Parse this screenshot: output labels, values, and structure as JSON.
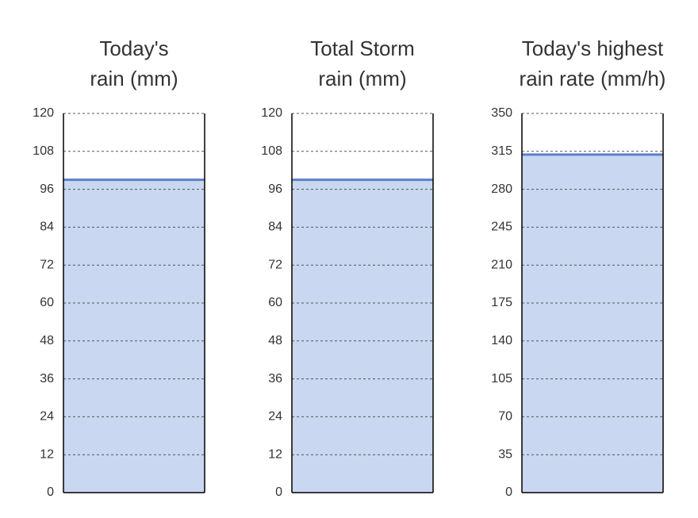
{
  "chart_data": [
    {
      "type": "bar",
      "title": [
        "Today's",
        "rain (mm)"
      ],
      "values": [
        99
      ],
      "color": "#c9d7f0",
      "line_color": "#5b7fc9",
      "ylim": [
        0,
        120
      ],
      "yticks": [
        0,
        12,
        24,
        36,
        48,
        60,
        72,
        84,
        96,
        108,
        120
      ],
      "grid": true
    },
    {
      "type": "bar",
      "title": [
        "Total Storm",
        "rain (mm)"
      ],
      "values": [
        99
      ],
      "color": "#c9d7f0",
      "line_color": "#5b7fc9",
      "ylim": [
        0,
        120
      ],
      "yticks": [
        0,
        12,
        24,
        36,
        48,
        60,
        72,
        84,
        96,
        108,
        120
      ],
      "grid": true
    },
    {
      "type": "bar",
      "title": [
        "Today's highest",
        "rain rate (mm/h)"
      ],
      "values": [
        312
      ],
      "color": "#c9d7f0",
      "line_color": "#5b7fc9",
      "ylim": [
        0,
        350
      ],
      "yticks": [
        0,
        35,
        70,
        105,
        140,
        175,
        210,
        245,
        280,
        315,
        350
      ],
      "grid": true
    }
  ]
}
